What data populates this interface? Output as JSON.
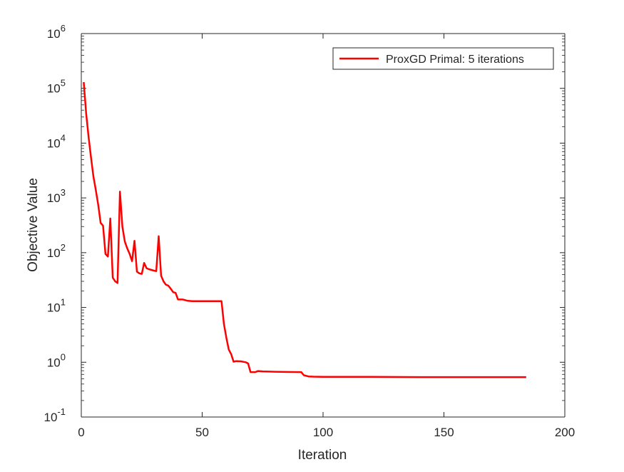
{
  "chart_data": {
    "type": "line",
    "title": "",
    "xlabel": "Iteration",
    "ylabel": "Objective Value",
    "xlim": [
      0,
      200
    ],
    "ylim": [
      0.1,
      1000000
    ],
    "yscale": "log",
    "grid": false,
    "legend_position": "top-right",
    "x_ticks": [
      0,
      50,
      100,
      150,
      200
    ],
    "y_ticks": [
      {
        "value": 0.1,
        "base": "10",
        "exp": "-1"
      },
      {
        "value": 1,
        "base": "10",
        "exp": "0"
      },
      {
        "value": 10,
        "base": "10",
        "exp": "1"
      },
      {
        "value": 100,
        "base": "10",
        "exp": "2"
      },
      {
        "value": 1000,
        "base": "10",
        "exp": "3"
      },
      {
        "value": 10000,
        "base": "10",
        "exp": "4"
      },
      {
        "value": 100000,
        "base": "10",
        "exp": "5"
      },
      {
        "value": 1000000,
        "base": "10",
        "exp": "6"
      }
    ],
    "series": [
      {
        "name": "ProxGD Primal: 5 iterations",
        "color": "#ff0000",
        "points": [
          [
            1,
            130000
          ],
          [
            2,
            35000
          ],
          [
            3,
            13000
          ],
          [
            4,
            5500
          ],
          [
            5,
            2500
          ],
          [
            6,
            1400
          ],
          [
            7,
            750
          ],
          [
            8,
            350
          ],
          [
            9,
            310
          ],
          [
            10,
            95
          ],
          [
            11,
            85
          ],
          [
            12,
            420
          ],
          [
            13,
            35
          ],
          [
            14,
            30
          ],
          [
            15,
            28
          ],
          [
            16,
            1300
          ],
          [
            17,
            300
          ],
          [
            18,
            160
          ],
          [
            19,
            120
          ],
          [
            20,
            95
          ],
          [
            21,
            70
          ],
          [
            22,
            165
          ],
          [
            23,
            45
          ],
          [
            24,
            42
          ],
          [
            25,
            41
          ],
          [
            26,
            65
          ],
          [
            27,
            52
          ],
          [
            28,
            50
          ],
          [
            30,
            47
          ],
          [
            31,
            46
          ],
          [
            32,
            200
          ],
          [
            33,
            38
          ],
          [
            34,
            30
          ],
          [
            35,
            26
          ],
          [
            36,
            25
          ],
          [
            37,
            22
          ],
          [
            38,
            19
          ],
          [
            39,
            18.5
          ],
          [
            40,
            14
          ],
          [
            42,
            14
          ],
          [
            44,
            13.2
          ],
          [
            46,
            13
          ],
          [
            50,
            13
          ],
          [
            55,
            13
          ],
          [
            58,
            13
          ],
          [
            59,
            5
          ],
          [
            60,
            2.8
          ],
          [
            61,
            1.7
          ],
          [
            62,
            1.4
          ],
          [
            63,
            1.02
          ],
          [
            64,
            1.05
          ],
          [
            66,
            1.04
          ],
          [
            68,
            1.0
          ],
          [
            69,
            0.95
          ],
          [
            70,
            0.66
          ],
          [
            72,
            0.66
          ],
          [
            73,
            0.69
          ],
          [
            75,
            0.68
          ],
          [
            80,
            0.67
          ],
          [
            85,
            0.665
          ],
          [
            91,
            0.66
          ],
          [
            92,
            0.58
          ],
          [
            94,
            0.55
          ],
          [
            96,
            0.545
          ],
          [
            100,
            0.54
          ],
          [
            110,
            0.54
          ],
          [
            120,
            0.54
          ],
          [
            140,
            0.535
          ],
          [
            160,
            0.535
          ],
          [
            184,
            0.535
          ]
        ]
      }
    ]
  }
}
